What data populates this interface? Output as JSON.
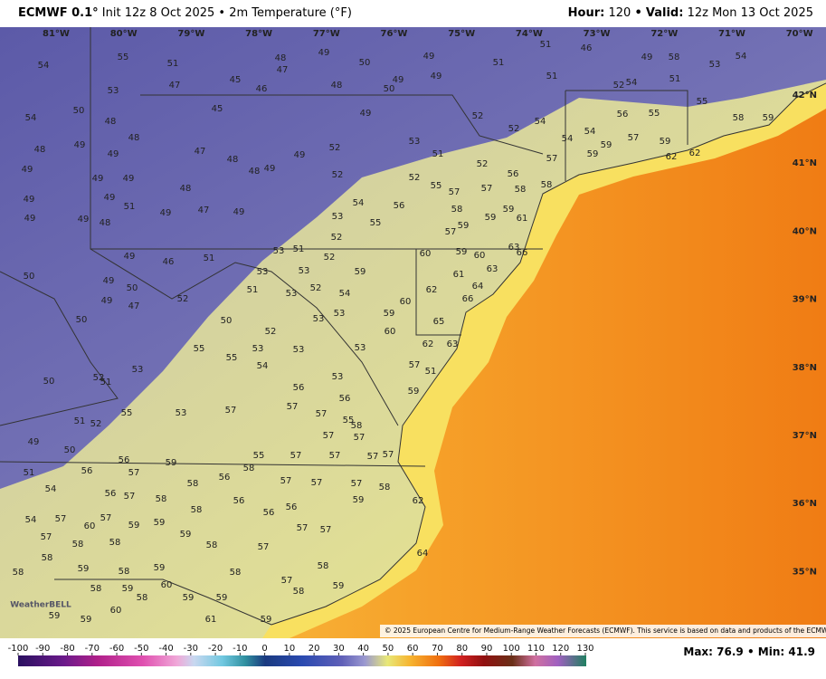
{
  "header": {
    "model": "ECMWF 0.1°",
    "details": "Init 12z 8 Oct 2025 • 2m Temperature (°F)",
    "hour_label": "Hour:",
    "hour": "120",
    "separator": "•",
    "valid_label": "Valid:",
    "valid": "12z Mon 13 Oct 2025"
  },
  "map": {
    "lon_labels": [
      "81°W",
      "80°W",
      "79°W",
      "78°W",
      "77°W",
      "76°W",
      "75°W",
      "74°W",
      "73°W",
      "72°W",
      "71°W",
      "70°W"
    ],
    "lat_labels": [
      "42°N",
      "41°N",
      "40°N",
      "39°N",
      "38°N",
      "37°N",
      "36°N",
      "35°N"
    ],
    "points": [
      54,
      55,
      51,
      47,
      45,
      46,
      48,
      47,
      49,
      50,
      48,
      50,
      49,
      49,
      49,
      51,
      51,
      51,
      46,
      49,
      58,
      53,
      54,
      51,
      52,
      54,
      53,
      54,
      50,
      48,
      45,
      49,
      52,
      52,
      54,
      56,
      55,
      55,
      58,
      59,
      48,
      49,
      48,
      49,
      47,
      48,
      48,
      49,
      49,
      52,
      53,
      51,
      54,
      54,
      59,
      57,
      59,
      49,
      49,
      49,
      48,
      49,
      49,
      51,
      49,
      47,
      49,
      52,
      52,
      55,
      56,
      52,
      57,
      59,
      62,
      62,
      49,
      49,
      48,
      54,
      53,
      55,
      56,
      57,
      57,
      58,
      58,
      59,
      58,
      59,
      59,
      61,
      52,
      53,
      51,
      57,
      60,
      59,
      60,
      63,
      66,
      49,
      46,
      51,
      50,
      53,
      53,
      52,
      63,
      49,
      50,
      51,
      53,
      52,
      54,
      59,
      61,
      64,
      62,
      60,
      66,
      52,
      49,
      47,
      52,
      53,
      53,
      59,
      60,
      65,
      50,
      50,
      55,
      53,
      53,
      55,
      54,
      53,
      62,
      63,
      53,
      52,
      51,
      50,
      53,
      57,
      51,
      56,
      56,
      59,
      55,
      53,
      57,
      57,
      57,
      55,
      58,
      51,
      52,
      49,
      50,
      57,
      57,
      56,
      59,
      55,
      57,
      57,
      57,
      57,
      51,
      56,
      57,
      56,
      58,
      57,
      57,
      57,
      54,
      56,
      57,
      58,
      58,
      56,
      56,
      56,
      59,
      58,
      62,
      54,
      57,
      60,
      57,
      59,
      59,
      58,
      57,
      57,
      58,
      58,
      59,
      58,
      57,
      57,
      58,
      58,
      59,
      58,
      59,
      58,
      58,
      64,
      58,
      60,
      59,
      58,
      59,
      59,
      57,
      58,
      59,
      60,
      59,
      59,
      61,
      59
    ],
    "logo": "WeatherBELL",
    "credit": "© 2025 European Centre for Medium-Range Weather Forecasts (ECMWF). This service is based on data and products of the ECMWF."
  },
  "colorbar": {
    "ticks": [
      -100,
      -90,
      -80,
      -70,
      -60,
      -50,
      -40,
      -30,
      -20,
      -10,
      0,
      10,
      20,
      30,
      40,
      50,
      60,
      70,
      80,
      90,
      100,
      110,
      120,
      130
    ]
  },
  "stats": {
    "max_label": "Max:",
    "max": 76.9,
    "separator": "•",
    "min_label": "Min:",
    "min": 41.9
  }
}
